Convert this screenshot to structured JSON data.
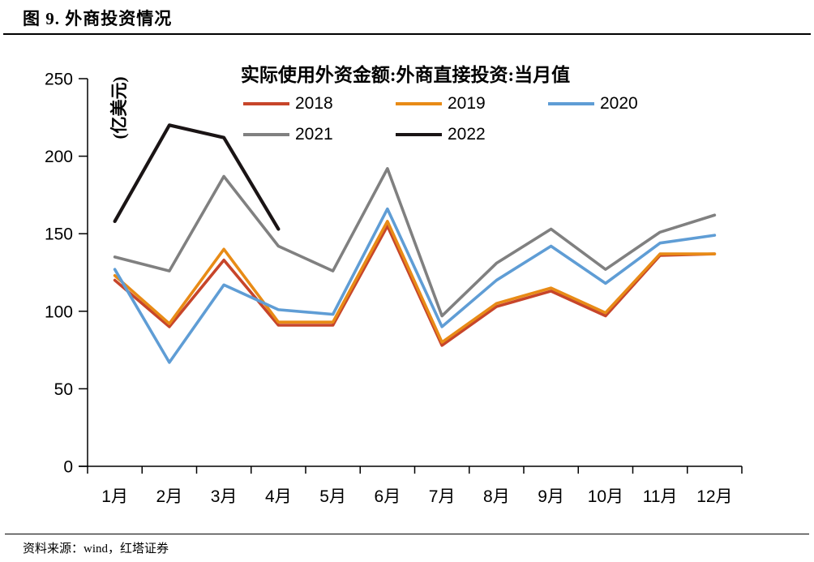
{
  "page": {
    "figure_title": "图 9. 外商投资情况",
    "source_note": "资料来源：wind，红塔证券"
  },
  "chart_data": {
    "type": "line",
    "title": "实际使用外资金额:外商直接投资:当月值",
    "ylabel": "(亿美元)",
    "xlabel": "",
    "ylim": [
      0,
      250
    ],
    "yticks": [
      0,
      50,
      100,
      150,
      200,
      250
    ],
    "grid": false,
    "legend_position": "top",
    "categories": [
      "1月",
      "2月",
      "3月",
      "4月",
      "5月",
      "6月",
      "7月",
      "8月",
      "9月",
      "10月",
      "11月",
      "12月"
    ],
    "series": [
      {
        "name": "2018",
        "color": "#C7452A",
        "values": [
          120,
          90,
          133,
          91,
          91,
          155,
          78,
          103,
          113,
          97,
          136,
          137
        ]
      },
      {
        "name": "2019",
        "color": "#E88B16",
        "values": [
          123,
          92,
          140,
          93,
          93,
          158,
          80,
          105,
          115,
          99,
          137,
          137
        ]
      },
      {
        "name": "2020",
        "color": "#5F9DD5",
        "values": [
          127,
          67,
          117,
          101,
          98,
          166,
          90,
          120,
          142,
          118,
          144,
          149
        ]
      },
      {
        "name": "2021",
        "color": "#808080",
        "values": [
          135,
          126,
          187,
          142,
          126,
          192,
          97,
          131,
          153,
          127,
          151,
          162
        ]
      },
      {
        "name": "2022",
        "color": "#1A1415",
        "values": [
          158,
          220,
          212,
          153
        ]
      }
    ]
  }
}
